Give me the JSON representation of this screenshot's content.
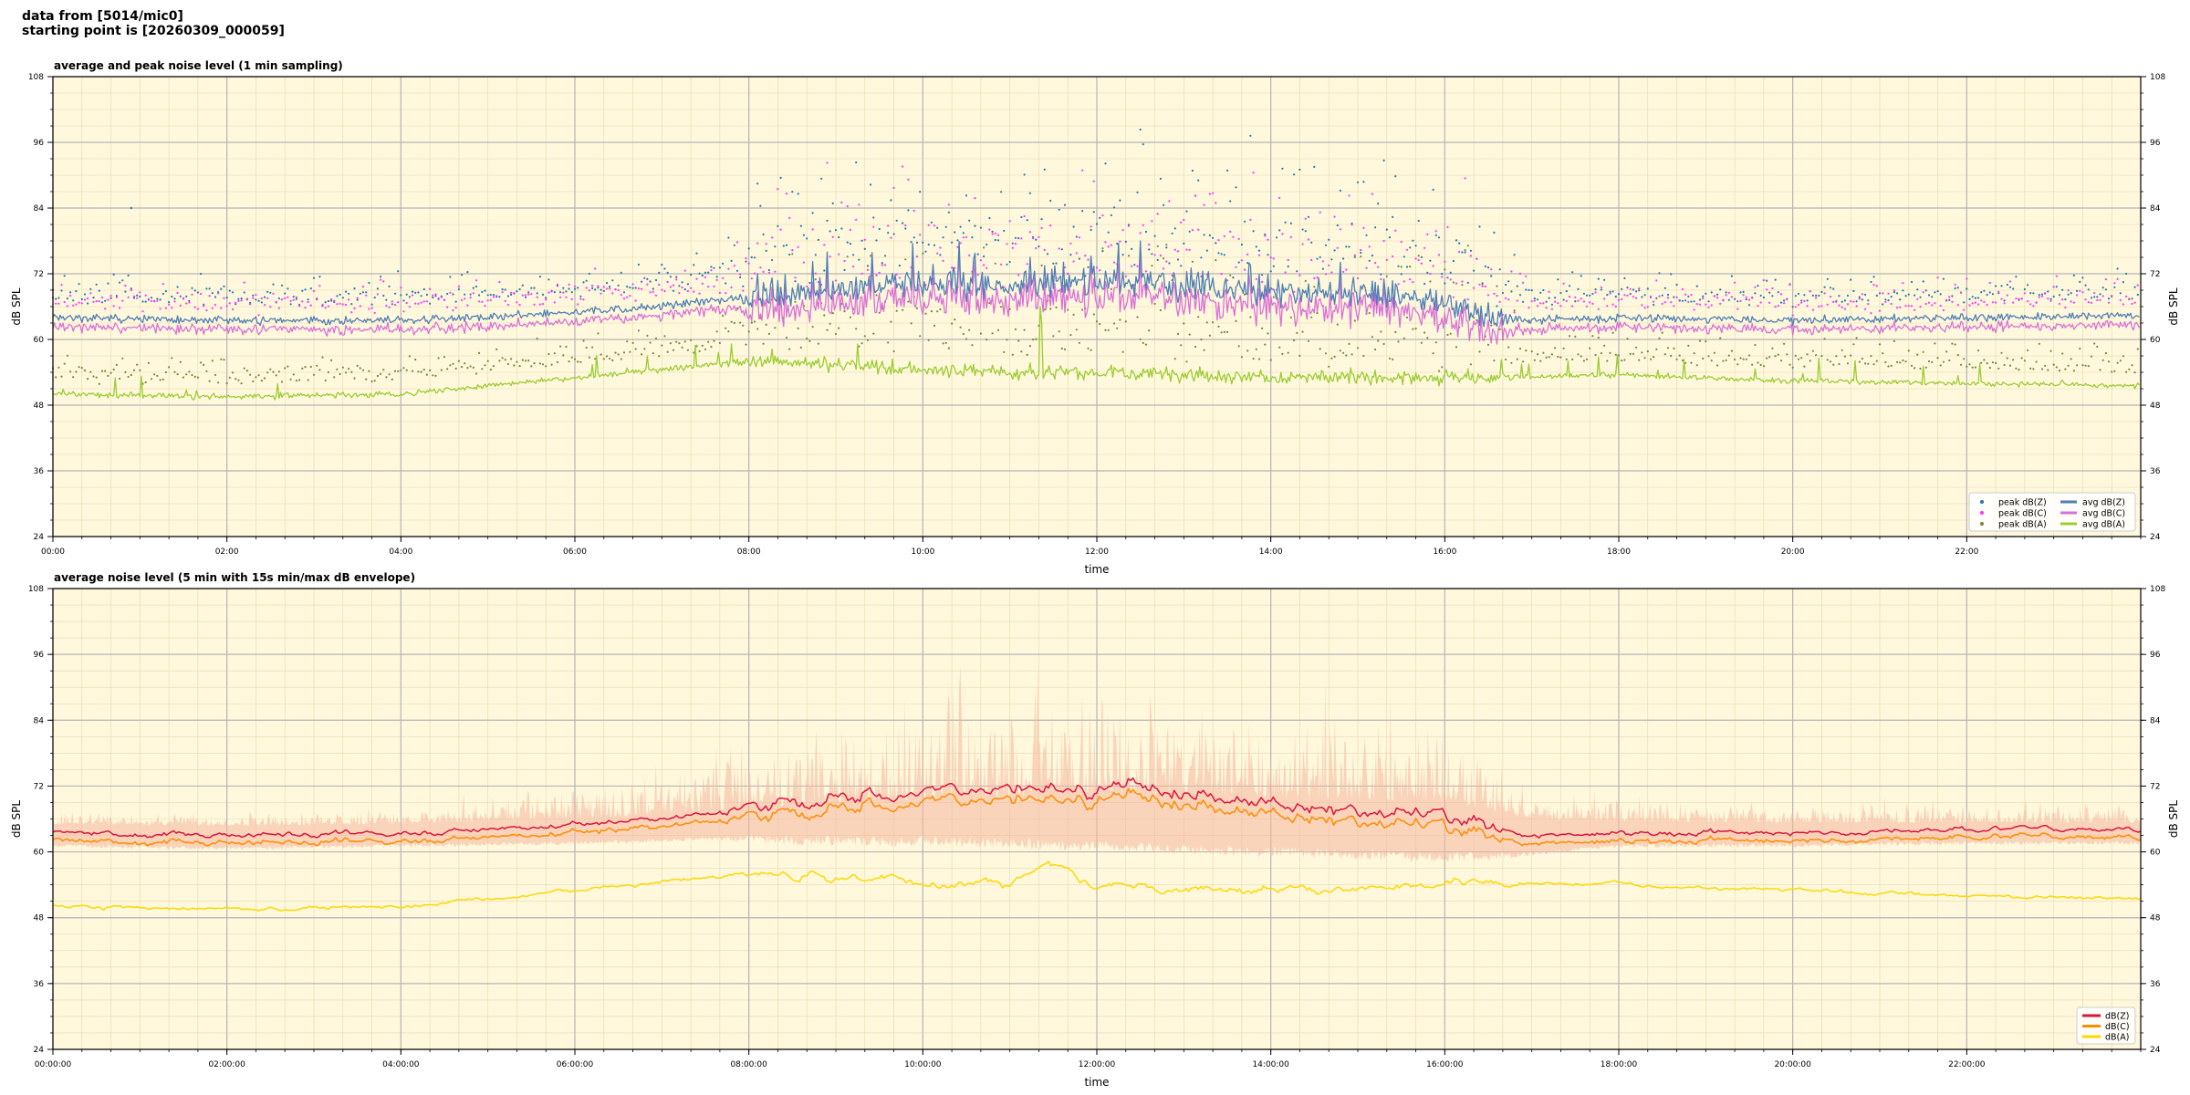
{
  "header": {
    "line1": "data from [5014/mic0]",
    "line2": "starting point is [20260309_000059]"
  },
  "colors": {
    "plot_bg": "#fff8dc",
    "peak_z": "#1f77b4",
    "peak_c": "#ff33ff",
    "peak_a": "#6e8b3d",
    "avg_z": "#4f7fb5",
    "avg_c": "#da70d6",
    "avg_a": "#9acd32",
    "line_z": "#dc143c",
    "line_c": "#ff8c00",
    "line_a": "#ffd700",
    "envelope": "#f4b7a0"
  },
  "chart_data": [
    {
      "type": "line",
      "title": "average and peak noise level (1 min sampling)",
      "xlabel": "time",
      "ylabel": "dB SPL",
      "xlim_hours": [
        0,
        24
      ],
      "ylim": [
        24,
        108
      ],
      "yticks": [
        24,
        36,
        48,
        60,
        72,
        84,
        96,
        108
      ],
      "xticks": [
        {
          "h": 0,
          "label": "00:00"
        },
        {
          "h": 2,
          "label": "02:00"
        },
        {
          "h": 4,
          "label": "04:00"
        },
        {
          "h": 6,
          "label": "06:00"
        },
        {
          "h": 8,
          "label": "08:00"
        },
        {
          "h": 10,
          "label": "10:00"
        },
        {
          "h": 12,
          "label": "12:00"
        },
        {
          "h": 14,
          "label": "14:00"
        },
        {
          "h": 16,
          "label": "16:00"
        },
        {
          "h": 18,
          "label": "18:00"
        },
        {
          "h": 20,
          "label": "20:00"
        },
        {
          "h": 22,
          "label": "22:00"
        }
      ],
      "grid": true,
      "legend_position": "bottom-right",
      "series": [
        {
          "name": "peak dB(Z)",
          "kind": "points",
          "color_key": "peak_z",
          "legend_col": 0,
          "legend_row": 0
        },
        {
          "name": "peak dB(C)",
          "kind": "points",
          "color_key": "peak_c",
          "legend_col": 0,
          "legend_row": 1
        },
        {
          "name": "peak dB(A)",
          "kind": "points",
          "color_key": "peak_a",
          "legend_col": 0,
          "legend_row": 2
        },
        {
          "name": "avg dB(Z)",
          "kind": "line",
          "color_key": "avg_z",
          "legend_col": 1,
          "legend_row": 0
        },
        {
          "name": "avg dB(C)",
          "kind": "line",
          "color_key": "avg_c",
          "legend_col": 1,
          "legend_row": 1
        },
        {
          "name": "avg dB(A)",
          "kind": "line",
          "color_key": "avg_a",
          "legend_col": 1,
          "legend_row": 2
        }
      ],
      "profile_avg_z": {
        "h": [
          0,
          2,
          4,
          5,
          6,
          7,
          8,
          9,
          10,
          11,
          12,
          13,
          14,
          15,
          16,
          16.5,
          17,
          18,
          20,
          22,
          24
        ],
        "db": [
          64,
          63.5,
          63.5,
          64,
          65,
          66,
          68,
          69,
          70,
          70,
          71,
          70,
          69,
          68,
          67,
          64,
          63.5,
          64,
          63.5,
          64,
          64.5
        ]
      },
      "profile_avg_a": {
        "h": [
          0,
          2,
          4,
          5,
          6,
          7,
          8,
          9,
          10,
          11,
          12,
          13,
          14,
          15,
          16,
          18,
          20,
          22,
          24
        ],
        "db": [
          50,
          49.5,
          50,
          51.5,
          53,
          54.5,
          56,
          55.5,
          54.5,
          54,
          54,
          53.5,
          53,
          53,
          53,
          53.5,
          52.5,
          52,
          51.5
        ]
      },
      "features": [
        {
          "h": 11.35,
          "db": 66,
          "series": "avg dB(A)"
        },
        {
          "h": 12.5,
          "db": 78,
          "series": "avg dB(Z)"
        },
        {
          "h": 0.9,
          "db": 84,
          "series": "peak dB(Z)"
        }
      ]
    },
    {
      "type": "line",
      "title": "average noise level (5 min with 15s min/max dB envelope)",
      "xlabel": "time",
      "ylabel": "dB SPL",
      "xlim_hours": [
        0,
        24
      ],
      "ylim": [
        24,
        108
      ],
      "yticks": [
        24,
        36,
        48,
        60,
        72,
        84,
        96,
        108
      ],
      "xticks": [
        {
          "h": 0,
          "label": "00:00:00"
        },
        {
          "h": 2,
          "label": "02:00:00"
        },
        {
          "h": 4,
          "label": "04:00:00"
        },
        {
          "h": 6,
          "label": "06:00:00"
        },
        {
          "h": 8,
          "label": "08:00:00"
        },
        {
          "h": 10,
          "label": "10:00:00"
        },
        {
          "h": 12,
          "label": "12:00:00"
        },
        {
          "h": 14,
          "label": "14:00:00"
        },
        {
          "h": 16,
          "label": "16:00:00"
        },
        {
          "h": 18,
          "label": "18:00:00"
        },
        {
          "h": 20,
          "label": "20:00:00"
        },
        {
          "h": 22,
          "label": "22:00:00"
        }
      ],
      "grid": true,
      "legend_position": "bottom-right",
      "series": [
        {
          "name": "dB(Z)",
          "kind": "line",
          "color_key": "line_z"
        },
        {
          "name": "dB(C)",
          "kind": "line",
          "color_key": "line_c"
        },
        {
          "name": "dB(A)",
          "kind": "line",
          "color_key": "line_a"
        }
      ],
      "profile_z": {
        "h": [
          0,
          2,
          4,
          5,
          6,
          7,
          8,
          9,
          10,
          11,
          12,
          12.5,
          13,
          14,
          15,
          16,
          16.5,
          17,
          18,
          20,
          22,
          24
        ],
        "db": [
          63.5,
          63,
          63.5,
          64,
          65,
          66,
          68,
          70,
          71,
          71.5,
          71,
          73,
          70.5,
          69,
          67.5,
          66.5,
          64.5,
          63,
          63.5,
          63.5,
          64,
          64.5
        ]
      },
      "profile_a": {
        "h": [
          0,
          2,
          4,
          5,
          6,
          7,
          8,
          9,
          10,
          11,
          11.35,
          12,
          13,
          14,
          15,
          16,
          18,
          20,
          22,
          24
        ],
        "db": [
          50,
          49.5,
          50,
          51.5,
          53,
          54.5,
          56,
          55.5,
          54.5,
          54,
          58,
          54,
          53.5,
          53,
          53,
          54,
          54,
          53,
          52,
          51.5
        ]
      },
      "envelope_max": {
        "h": [
          0,
          2,
          4,
          6,
          7,
          8,
          9,
          10,
          11,
          12,
          13,
          14,
          15,
          16,
          16.5,
          17,
          18,
          20,
          22,
          24
        ],
        "db": [
          68,
          67,
          68,
          72,
          75,
          80,
          84,
          86,
          88,
          90,
          89,
          88,
          86,
          84,
          78,
          72,
          70,
          69,
          69,
          69
        ]
      },
      "envelope_min": {
        "h": [
          0,
          2,
          4,
          6,
          8,
          10,
          12,
          14,
          16,
          17,
          18,
          20,
          22,
          24
        ],
        "db": [
          61.5,
          61,
          61.5,
          62,
          63,
          63,
          62,
          61,
          60,
          60,
          61.5,
          61.5,
          62,
          62
        ]
      }
    }
  ]
}
